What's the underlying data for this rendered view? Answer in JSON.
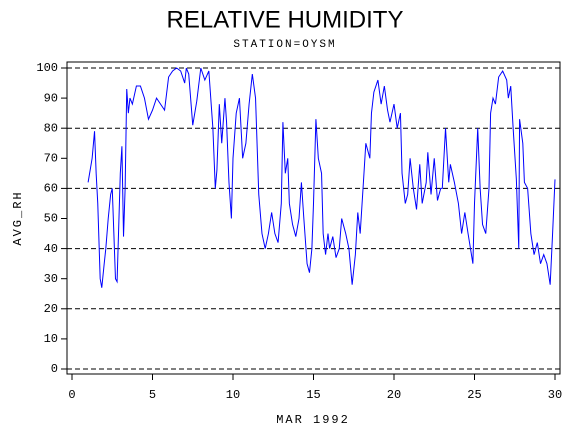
{
  "chart_data": {
    "type": "line",
    "title": "RELATIVE HUMIDITY",
    "subtitle": "STATION=OYSM",
    "x_label": "MAR 1992",
    "y_label": "AVG_RH",
    "x": [
      1,
      1.25,
      1.4,
      1.5,
      1.6,
      1.75,
      1.85,
      2,
      2.1,
      2.25,
      2.4,
      2.5,
      2.6,
      2.7,
      2.8,
      3,
      3.1,
      3.2,
      3.3,
      3.4,
      3.5,
      3.6,
      3.75,
      4,
      4.25,
      4.5,
      4.75,
      5,
      5.25,
      5.5,
      5.75,
      6,
      6.25,
      6.5,
      6.75,
      7,
      7.1,
      7.25,
      7.5,
      7.75,
      8,
      8.25,
      8.5,
      8.75,
      8.9,
      9,
      9.15,
      9.3,
      9.5,
      9.6,
      9.75,
      9.9,
      10,
      10.2,
      10.4,
      10.6,
      10.8,
      11,
      11.2,
      11.4,
      11.6,
      11.8,
      12,
      12.2,
      12.4,
      12.6,
      12.8,
      13,
      13.1,
      13.25,
      13.4,
      13.5,
      13.7,
      13.9,
      14.1,
      14.25,
      14.4,
      14.6,
      14.75,
      14.9,
      15,
      15.15,
      15.3,
      15.5,
      15.6,
      15.75,
      15.9,
      16,
      16.2,
      16.4,
      16.6,
      16.75,
      17,
      17.2,
      17.4,
      17.6,
      17.75,
      17.9,
      18.1,
      18.25,
      18.5,
      18.6,
      18.75,
      19,
      19.2,
      19.4,
      19.6,
      19.75,
      20,
      20.2,
      20.4,
      20.5,
      20.7,
      20.85,
      21,
      21.2,
      21.4,
      21.6,
      21.75,
      22,
      22.1,
      22.3,
      22.5,
      22.7,
      22.9,
      23,
      23.2,
      23.4,
      23.5,
      23.75,
      24,
      24.2,
      24.4,
      24.6,
      24.75,
      24.9,
      25,
      25.2,
      25.35,
      25.5,
      25.7,
      25.9,
      26,
      26.15,
      26.3,
      26.5,
      26.75,
      27,
      27.1,
      27.25,
      27.4,
      27.6,
      27.75,
      27.8,
      28,
      28.1,
      28.3,
      28.5,
      28.7,
      28.9,
      29.1,
      29.3,
      29.5,
      29.7,
      29.85,
      30
    ],
    "series": [
      {
        "name": "AVG_RH",
        "color": "#0000ff",
        "values": [
          62,
          70,
          79,
          65,
          55,
          30,
          27,
          35,
          40,
          50,
          58,
          60,
          45,
          30,
          29,
          65,
          74,
          44,
          60,
          93,
          85,
          90,
          88,
          94,
          94,
          90,
          83,
          86,
          90,
          88,
          86,
          97,
          99,
          100,
          99,
          95,
          100,
          98,
          81,
          89,
          100,
          96,
          99,
          80,
          60,
          66,
          88,
          75,
          90,
          82,
          62,
          50,
          70,
          85,
          90,
          70,
          75,
          88,
          98,
          90,
          58,
          45,
          40,
          45,
          52,
          45,
          42,
          55,
          82,
          65,
          70,
          55,
          48,
          44,
          50,
          62,
          50,
          35,
          32,
          40,
          55,
          83,
          70,
          65,
          45,
          38,
          45,
          40,
          44,
          37,
          40,
          50,
          45,
          40,
          28,
          38,
          52,
          45,
          62,
          75,
          70,
          85,
          92,
          96,
          88,
          94,
          86,
          82,
          88,
          80,
          85,
          65,
          55,
          58,
          70,
          60,
          53,
          68,
          55,
          62,
          72,
          58,
          70,
          56,
          60,
          60,
          80,
          62,
          68,
          62,
          55,
          45,
          52,
          45,
          40,
          35,
          55,
          80,
          60,
          48,
          45,
          60,
          85,
          90,
          88,
          97,
          99,
          96,
          90,
          94,
          80,
          63,
          40,
          83,
          75,
          62,
          60,
          45,
          38,
          42,
          35,
          38,
          35,
          28,
          45,
          63
        ]
      }
    ],
    "xlim": [
      0,
      30
    ],
    "xticks": [
      0,
      5,
      10,
      15,
      20,
      25,
      30
    ],
    "ylim": [
      0,
      100
    ],
    "yticks": [
      0,
      10,
      20,
      30,
      40,
      50,
      60,
      70,
      80,
      90,
      100
    ],
    "ygrid": [
      0,
      20,
      40,
      60,
      80,
      100
    ],
    "grid_style": "dashed"
  }
}
